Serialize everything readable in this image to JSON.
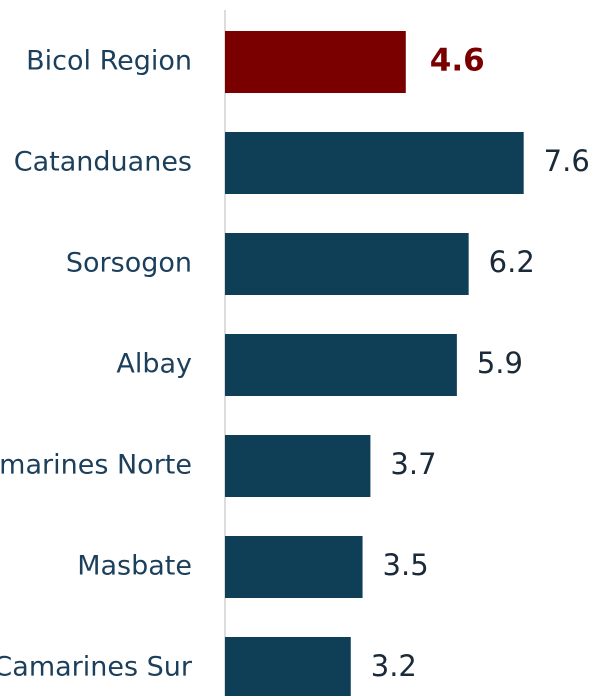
{
  "chart_data": {
    "type": "bar",
    "orientation": "horizontal",
    "categories": [
      "Bicol Region",
      "Catanduanes",
      "Sorsogon",
      "Albay",
      "Camarines Norte",
      "Masbate",
      "Camarines Sur"
    ],
    "values": [
      4.6,
      7.6,
      6.2,
      5.9,
      3.7,
      3.5,
      3.2
    ],
    "colors": [
      "#7a0000",
      "#0f3e57",
      "#0f3e57",
      "#0f3e57",
      "#0f3e57",
      "#0f3e57",
      "#0f3e57"
    ]
  }
}
